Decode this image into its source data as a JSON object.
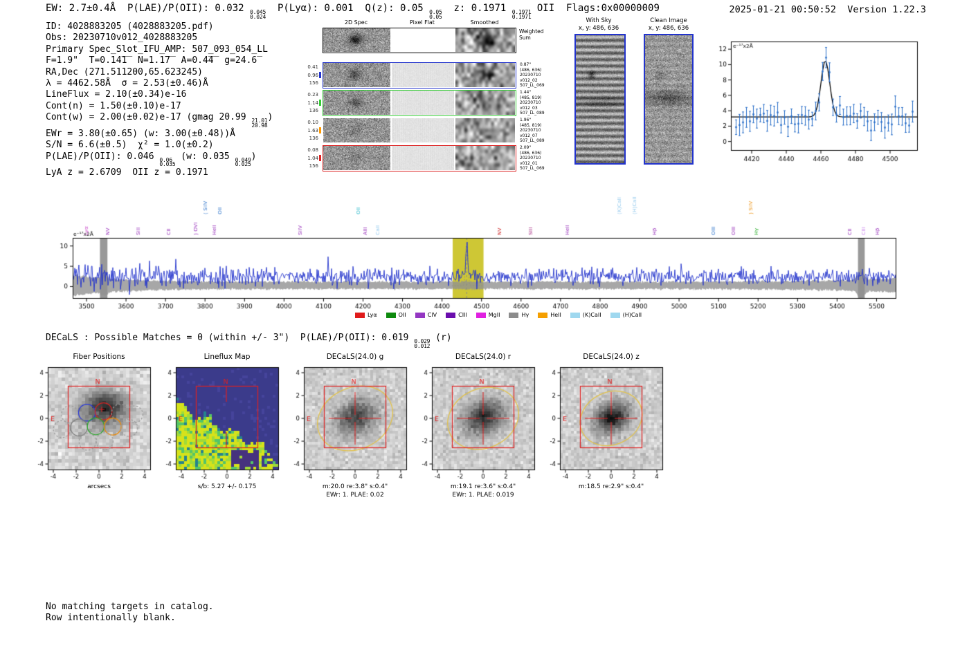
{
  "header": {
    "left": "EW: 2.7±0.4Å  P(LAE)/P(OII): 0.032 {0.045|0.024}  P(Lyα): 0.001  Q(z): 0.05 {0.05|0.05}  z: 0.1971 {0.1971|0.1971} OII  Flags:0x00000009",
    "right": "2025-01-21 00:50:52  Version 1.22.3"
  },
  "info_lines": [
    "ID: 4028883205 (4028883205.pdf)",
    "Obs: 20230710v012_4028883205",
    "Primary Spec_Slot_IFU_AMP: 507_093_054_LL",
    "F=1.9\"  T=0.14̅1̅  N=1.1̅7̅  A=0.4̅4̅  g=24.6̅",
    "RA,Dec (271.511200,65.623245)",
    "λ = 4462.58Å  σ = 2.53(±0.46)Å",
    "LineFlux = 2.10(±0.34)e-16",
    "Cont(n) = 1.50(±0.10)e-17",
    "Cont(w) = 2.00(±0.02)e-17 (gmag 20.99 {21.01|20.98})",
    "EWr = 3.80(±0.65) (w: 3.00(±0.48))Å",
    "S/N = 6.6(±0.5)  χ² = 1.0(±0.2)",
    "P(LAE)/P(OII): 0.046 {0.06|0.035} (w: 0.035 {0.049|0.025})",
    "LyA z = 2.6709  OII z = 0.1971"
  ],
  "spec2d": {
    "columns": [
      "2D Spec",
      "Pixel Flat",
      "Smoothed"
    ],
    "weighted_label": "Weighted\nSum",
    "rows": [
      {
        "left": "0.41\n0.96\n156",
        "right": "0.87\"\n(486, 636)\n20230710\nv012_02\n507_LL_069",
        "border": "#2233cc",
        "tick": "#2233cc"
      },
      {
        "left": "0.23\n1.14\n136",
        "right": "1.44\"\n(485, 819)\n20230710\nv012_03\n507_LL_089",
        "border": "#33cc33",
        "tick": "#33cc33"
      },
      {
        "left": "0.10\n1.63\n136",
        "right": "1.96\"\n(485, 819)\n20230710\nv012_07\n507_LL_089",
        "border": null,
        "tick": "#ff9900"
      },
      {
        "left": "0.08\n1.04\n156",
        "right": "2.09\"\n(486, 636)\n20230710\nv012_01\n507_LL_069",
        "border": "#dd2222",
        "tick": "#dd2222"
      }
    ]
  },
  "sky_panel": {
    "title": "With Sky",
    "subtitle": "x, y: 486, 636"
  },
  "clean_panel": {
    "title": "Clean Image",
    "subtitle": "x, y: 486, 636"
  },
  "decals_header": "DECaLS : Possible Matches = 0 (within +/- 3\")  P(LAE)/P(OII): 0.019 {0.029|0.012} (r)",
  "footer_lines": [
    "No matching targets in catalog.",
    "Row intentionally blank."
  ],
  "colors": {
    "cutout_border": "#2233cc",
    "aperture_red": "#e02020",
    "spectrum_blue": "#2233cc",
    "highlight_yellow": "#c9c11f"
  },
  "chart_data": [
    {
      "id": "zoom_fit",
      "type": "scatter",
      "title": "",
      "ylabel": "e⁻¹⁷x2Å",
      "xlim": [
        4408,
        4516
      ],
      "ylim": [
        -1.2,
        13
      ],
      "xticks": [
        4420,
        4440,
        4460,
        4480,
        4500
      ],
      "yticks": [
        0,
        2,
        4,
        6,
        8,
        10,
        12
      ],
      "point_color": "#2a6fc9",
      "fit_color": "#000000",
      "noise_sigma": 1.0,
      "errorbar_size": 1.0,
      "fit": {
        "center": 4462.58,
        "sigma": 2.53,
        "amplitude": 7.3,
        "continuum": 3.2
      }
    },
    {
      "id": "spectrum",
      "type": "line",
      "ylabel": "e⁻¹⁷x2Å",
      "xlim": [
        3465,
        5550
      ],
      "ylim": [
        -3,
        12
      ],
      "xticks": [
        3500,
        3600,
        3700,
        3800,
        3900,
        4000,
        4100,
        4200,
        4300,
        4400,
        4500,
        4600,
        4700,
        4800,
        4900,
        5000,
        5100,
        5200,
        5300,
        5400,
        5500
      ],
      "yticks": [
        0,
        5,
        10
      ],
      "line_color": "#2233cc",
      "continuum": 2.4,
      "noise_sigma": 1.5,
      "emission_line": {
        "center": 4462.58,
        "sigma": 2.53,
        "peak_height": 11
      },
      "highlight_band": {
        "x0": 4427,
        "x1": 4505,
        "color": "#c9c11f"
      },
      "sky_bands": [
        [
          3534,
          3553
        ],
        [
          5453,
          5470
        ]
      ],
      "error_band": {
        "center": 0.3,
        "half_width": 0.9
      },
      "line_labels": [
        {
          "name": "Lyα",
          "x": 3500,
          "tier": 0,
          "color": "#cc55cc"
        },
        {
          "name": "NV",
          "x": 3554,
          "tier": 0,
          "color": "#9933bb"
        },
        {
          "name": "SiII",
          "x": 3630,
          "tier": 0,
          "color": "#9933bb"
        },
        {
          "name": "CII",
          "x": 3708,
          "tier": 0,
          "color": "#9933bb"
        },
        {
          "name": ") OVI",
          "x": 3776,
          "tier": 0,
          "color": "#9933bb"
        },
        {
          "name": "HeII",
          "x": 3824,
          "tier": 0,
          "color": "#9933bb"
        },
        {
          "name": "( SiIV",
          "x": 3800,
          "tier": 1,
          "color": "#3377cc"
        },
        {
          "name": "OII",
          "x": 3838,
          "tier": 1,
          "color": "#3377cc"
        },
        {
          "name": "SiIV",
          "x": 4041,
          "tier": 0,
          "color": "#9933bb"
        },
        {
          "name": "OII",
          "x": 4188,
          "tier": 1,
          "color": "#33bbcc"
        },
        {
          "name": "AlII",
          "x": 4206,
          "tier": 0,
          "color": "#9933bb"
        },
        {
          "name": "CaII",
          "x": 4236,
          "tier": 0,
          "color": "#99ccee"
        },
        {
          "name": "NV",
          "x": 4546,
          "tier": 0,
          "color": "#cc2222"
        },
        {
          "name": "SIII",
          "x": 4624,
          "tier": 0,
          "color": "#aa3388"
        },
        {
          "name": "HeII",
          "x": 4716,
          "tier": 0,
          "color": "#9933bb"
        },
        {
          "name": "(K)CaII",
          "x": 4848,
          "tier": 1,
          "color": "#99ccee"
        },
        {
          "name": "(H)CaII",
          "x": 4886,
          "tier": 1,
          "color": "#99ccee"
        },
        {
          "name": "Hβ",
          "x": 4938,
          "tier": 0,
          "color": "#9933bb"
        },
        {
          "name": "OIII",
          "x": 5086,
          "tier": 0,
          "color": "#3377cc"
        },
        {
          "name": "OIII",
          "x": 5138,
          "tier": 0,
          "color": "#9933bb"
        },
        {
          "name": ") SiIV",
          "x": 5182,
          "tier": 1,
          "color": "#ee9922"
        },
        {
          "name": "Hγ",
          "x": 5196,
          "tier": 0,
          "color": "#22aa22"
        },
        {
          "name": "CII",
          "x": 5432,
          "tier": 0,
          "color": "#9933bb"
        },
        {
          "name": "CIII",
          "x": 5466,
          "tier": 0,
          "color": "#cc88ee"
        },
        {
          "name": "Hβ",
          "x": 5502,
          "tier": 0,
          "color": "#9933bb"
        }
      ],
      "legend": [
        {
          "label": "Lyα",
          "color": "#e01b1b"
        },
        {
          "label": "OII",
          "color": "#0e8a0e"
        },
        {
          "label": "CIV",
          "color": "#9437c2"
        },
        {
          "label": "CIII",
          "color": "#6a0dad"
        },
        {
          "label": "MgII",
          "color": "#e020e0"
        },
        {
          "label": "Hγ",
          "color": "#8c8c8c"
        },
        {
          "label": "HeII",
          "color": "#f59f00"
        },
        {
          "label": "(K)CaII",
          "color": "#9fd8ef"
        },
        {
          "label": "(H)CaII",
          "color": "#9fd8ef"
        }
      ]
    },
    {
      "id": "fiber_positions",
      "type": "image",
      "title": "Fiber Positions",
      "caption1": "arcsecs",
      "xticks": [
        -4,
        -2,
        0,
        2,
        4
      ],
      "yticks": [
        -4,
        -2,
        0,
        2,
        4
      ],
      "compass": {
        "n": "N",
        "e": "E"
      },
      "aperture_color": "#e02020",
      "fibers": [
        {
          "x": -2.55,
          "y": 0.35,
          "r": 0.74,
          "color": "#999999",
          "dashed": true
        },
        {
          "x": -1.05,
          "y": 0.5,
          "r": 0.74,
          "color": "#2233dd",
          "dashed": false
        },
        {
          "x": 0.4,
          "y": 0.62,
          "r": 0.74,
          "color": "#dd2222",
          "dashed": false
        },
        {
          "x": 1.85,
          "y": 0.5,
          "r": 0.74,
          "color": "#999999",
          "dashed": true
        },
        {
          "x": 3.1,
          "y": 0.35,
          "r": 0.74,
          "color": "#999999",
          "dashed": true
        },
        {
          "x": -3.25,
          "y": -0.95,
          "r": 0.74,
          "color": "#999999",
          "dashed": true
        },
        {
          "x": -1.75,
          "y": -0.8,
          "r": 0.74,
          "color": "#777777",
          "dashed": false
        },
        {
          "x": -0.28,
          "y": -0.7,
          "r": 0.74,
          "color": "#22aa22",
          "dashed": false
        },
        {
          "x": 1.2,
          "y": -0.72,
          "r": 0.74,
          "color": "#ee8800",
          "dashed": false
        },
        {
          "x": 2.65,
          "y": -0.85,
          "r": 0.74,
          "color": "#999999",
          "dashed": true
        },
        {
          "x": -1.0,
          "y": -2.05,
          "r": 0.74,
          "color": "#999999",
          "dashed": true
        },
        {
          "x": 0.5,
          "y": -2.0,
          "r": 0.74,
          "color": "#999999",
          "dashed": true
        }
      ]
    },
    {
      "id": "lineflux_map",
      "type": "heatmap",
      "title": "Lineflux Map",
      "caption1": "s/b: 5.27 +/- 0.175",
      "xticks": [
        -4,
        -2,
        0,
        2,
        4
      ],
      "yticks": [
        -4,
        -2,
        0,
        2,
        4
      ],
      "compass": {
        "n": "N",
        "e": "E"
      },
      "palette": {
        "bg": "#3b3b8b",
        "yellow": "#d6e21b",
        "green1": "#a0da39",
        "green2": "#54c568",
        "teal": "#26828e",
        "dark": "#46327e"
      }
    },
    {
      "id": "decals_g",
      "type": "image",
      "title": "DECaLS(24.0) g",
      "caption1": "m:20.0 re:3.8\" s:0.4\"",
      "caption2": "EWr: 1. PLAE: 0.02",
      "xticks": [
        -4,
        -2,
        0,
        2,
        4
      ],
      "yticks": [
        -4,
        -2,
        0,
        2,
        4
      ],
      "compass": {
        "n": "N",
        "e": "E"
      },
      "ellipse": {
        "rx_arcsec": 3.4,
        "ry_arcsec": 2.7,
        "angle_deg": -25
      },
      "blob": {
        "amp": 135,
        "sx": 5.5,
        "sy": 4.2
      }
    },
    {
      "id": "decals_r",
      "type": "image",
      "title": "DECaLS(24.0) r",
      "caption1": "m:19.1 re:3.6\" s:0.4\"",
      "caption2": "EWr: 1. PLAE: 0.019",
      "xticks": [
        -4,
        -2,
        0,
        2,
        4
      ],
      "yticks": [
        -4,
        -2,
        0,
        2,
        4
      ],
      "compass": {
        "n": "N",
        "e": "E"
      },
      "ellipse": {
        "rx_arcsec": 3.2,
        "ry_arcsec": 2.6,
        "angle_deg": -25
      },
      "blob": {
        "amp": 160,
        "sx": 5.2,
        "sy": 4.0
      }
    },
    {
      "id": "decals_z",
      "type": "image",
      "title": "DECaLS(24.0) z",
      "caption1": "m:18.5 re:2.9\" s:0.4\"",
      "xticks": [
        -4,
        -2,
        0,
        2,
        4
      ],
      "yticks": [
        -4,
        -2,
        0,
        2,
        4
      ],
      "compass": {
        "n": "N",
        "e": "E"
      },
      "ellipse": {
        "rx_arcsec": 2.8,
        "ry_arcsec": 2.3,
        "angle_deg": -25
      },
      "blob": {
        "amp": 185,
        "sx": 4.4,
        "sy": 3.5
      }
    }
  ]
}
